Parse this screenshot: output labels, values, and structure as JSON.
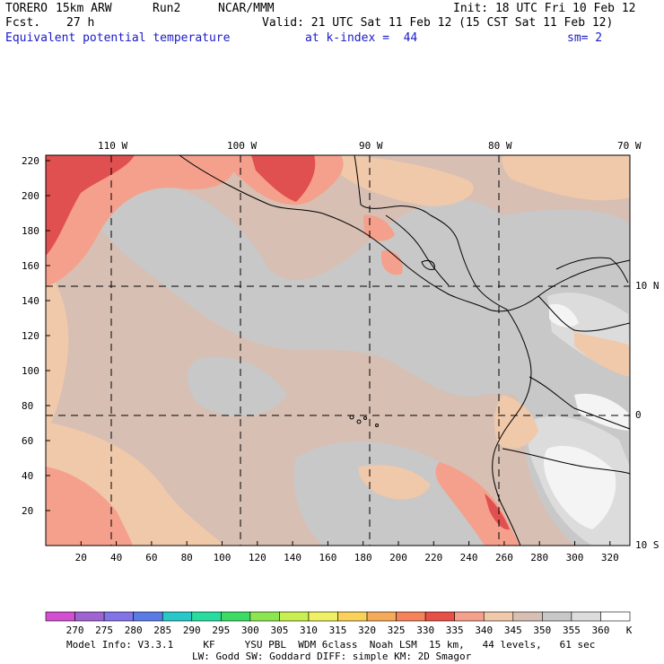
{
  "header": {
    "model": "TORERO",
    "resolution": "15km ARW",
    "run": "Run2",
    "org": "NCAR/MMM",
    "init": "Init: 18 UTC Fri 10 Feb 12",
    "fcst_label": "Fcst.",
    "fcst_value": "27 h",
    "valid": "Valid: 21 UTC Sat 11 Feb 12 (15 CST Sat 11 Feb 12)",
    "field": "Equivalent potential temperature",
    "level": "at k-index =  44",
    "smoothing": "sm= 2"
  },
  "map": {
    "top_lon_labels": [
      "110 W",
      "100 W",
      "90 W",
      "80 W",
      "70 W"
    ],
    "right_lat_labels": [
      "10 N",
      "0",
      "10 S"
    ],
    "y_ticks": [
      "220",
      "200",
      "180",
      "160",
      "140",
      "120",
      "100",
      "80",
      "60",
      "40",
      "20"
    ],
    "x_ticks": [
      "20",
      "40",
      "60",
      "80",
      "100",
      "120",
      "140",
      "160",
      "180",
      "200",
      "220",
      "240",
      "260",
      "280",
      "300",
      "320"
    ],
    "colors": {
      "background_warm": "#d7bfb3",
      "gray": "#c8c8c8",
      "light_gray": "#dcdcdc",
      "peach": "#f0c8aa",
      "salmon": "#f5a08c",
      "red": "#e05050",
      "white": "#f4f4f4",
      "coast": "#000000"
    }
  },
  "colorbar": {
    "labels": [
      "270",
      "275",
      "280",
      "285",
      "290",
      "295",
      "300",
      "305",
      "310",
      "315",
      "320",
      "325",
      "330",
      "335",
      "340",
      "345",
      "350",
      "355",
      "360"
    ],
    "unit": "K",
    "colors": [
      "#d24fd2",
      "#a064d2",
      "#8273e6",
      "#5a7ae6",
      "#28c8c8",
      "#28dca0",
      "#3cdc64",
      "#8ce650",
      "#c8f050",
      "#f0f064",
      "#fad25a",
      "#f5aa5a",
      "#f5825a",
      "#e65046",
      "#f5a08c",
      "#f0c8aa",
      "#d7bfb3",
      "#c8c8c8",
      "#dcdcdc",
      "#ffffff"
    ]
  },
  "footer": {
    "line1": "Model Info: V3.3.1     KF     YSU PBL  WDM 6class  Noah LSM  15 km,   44 levels,   61 sec",
    "line2": "LW: Godd SW: Goddard DIFF: simple KM: 2D Smagor"
  }
}
